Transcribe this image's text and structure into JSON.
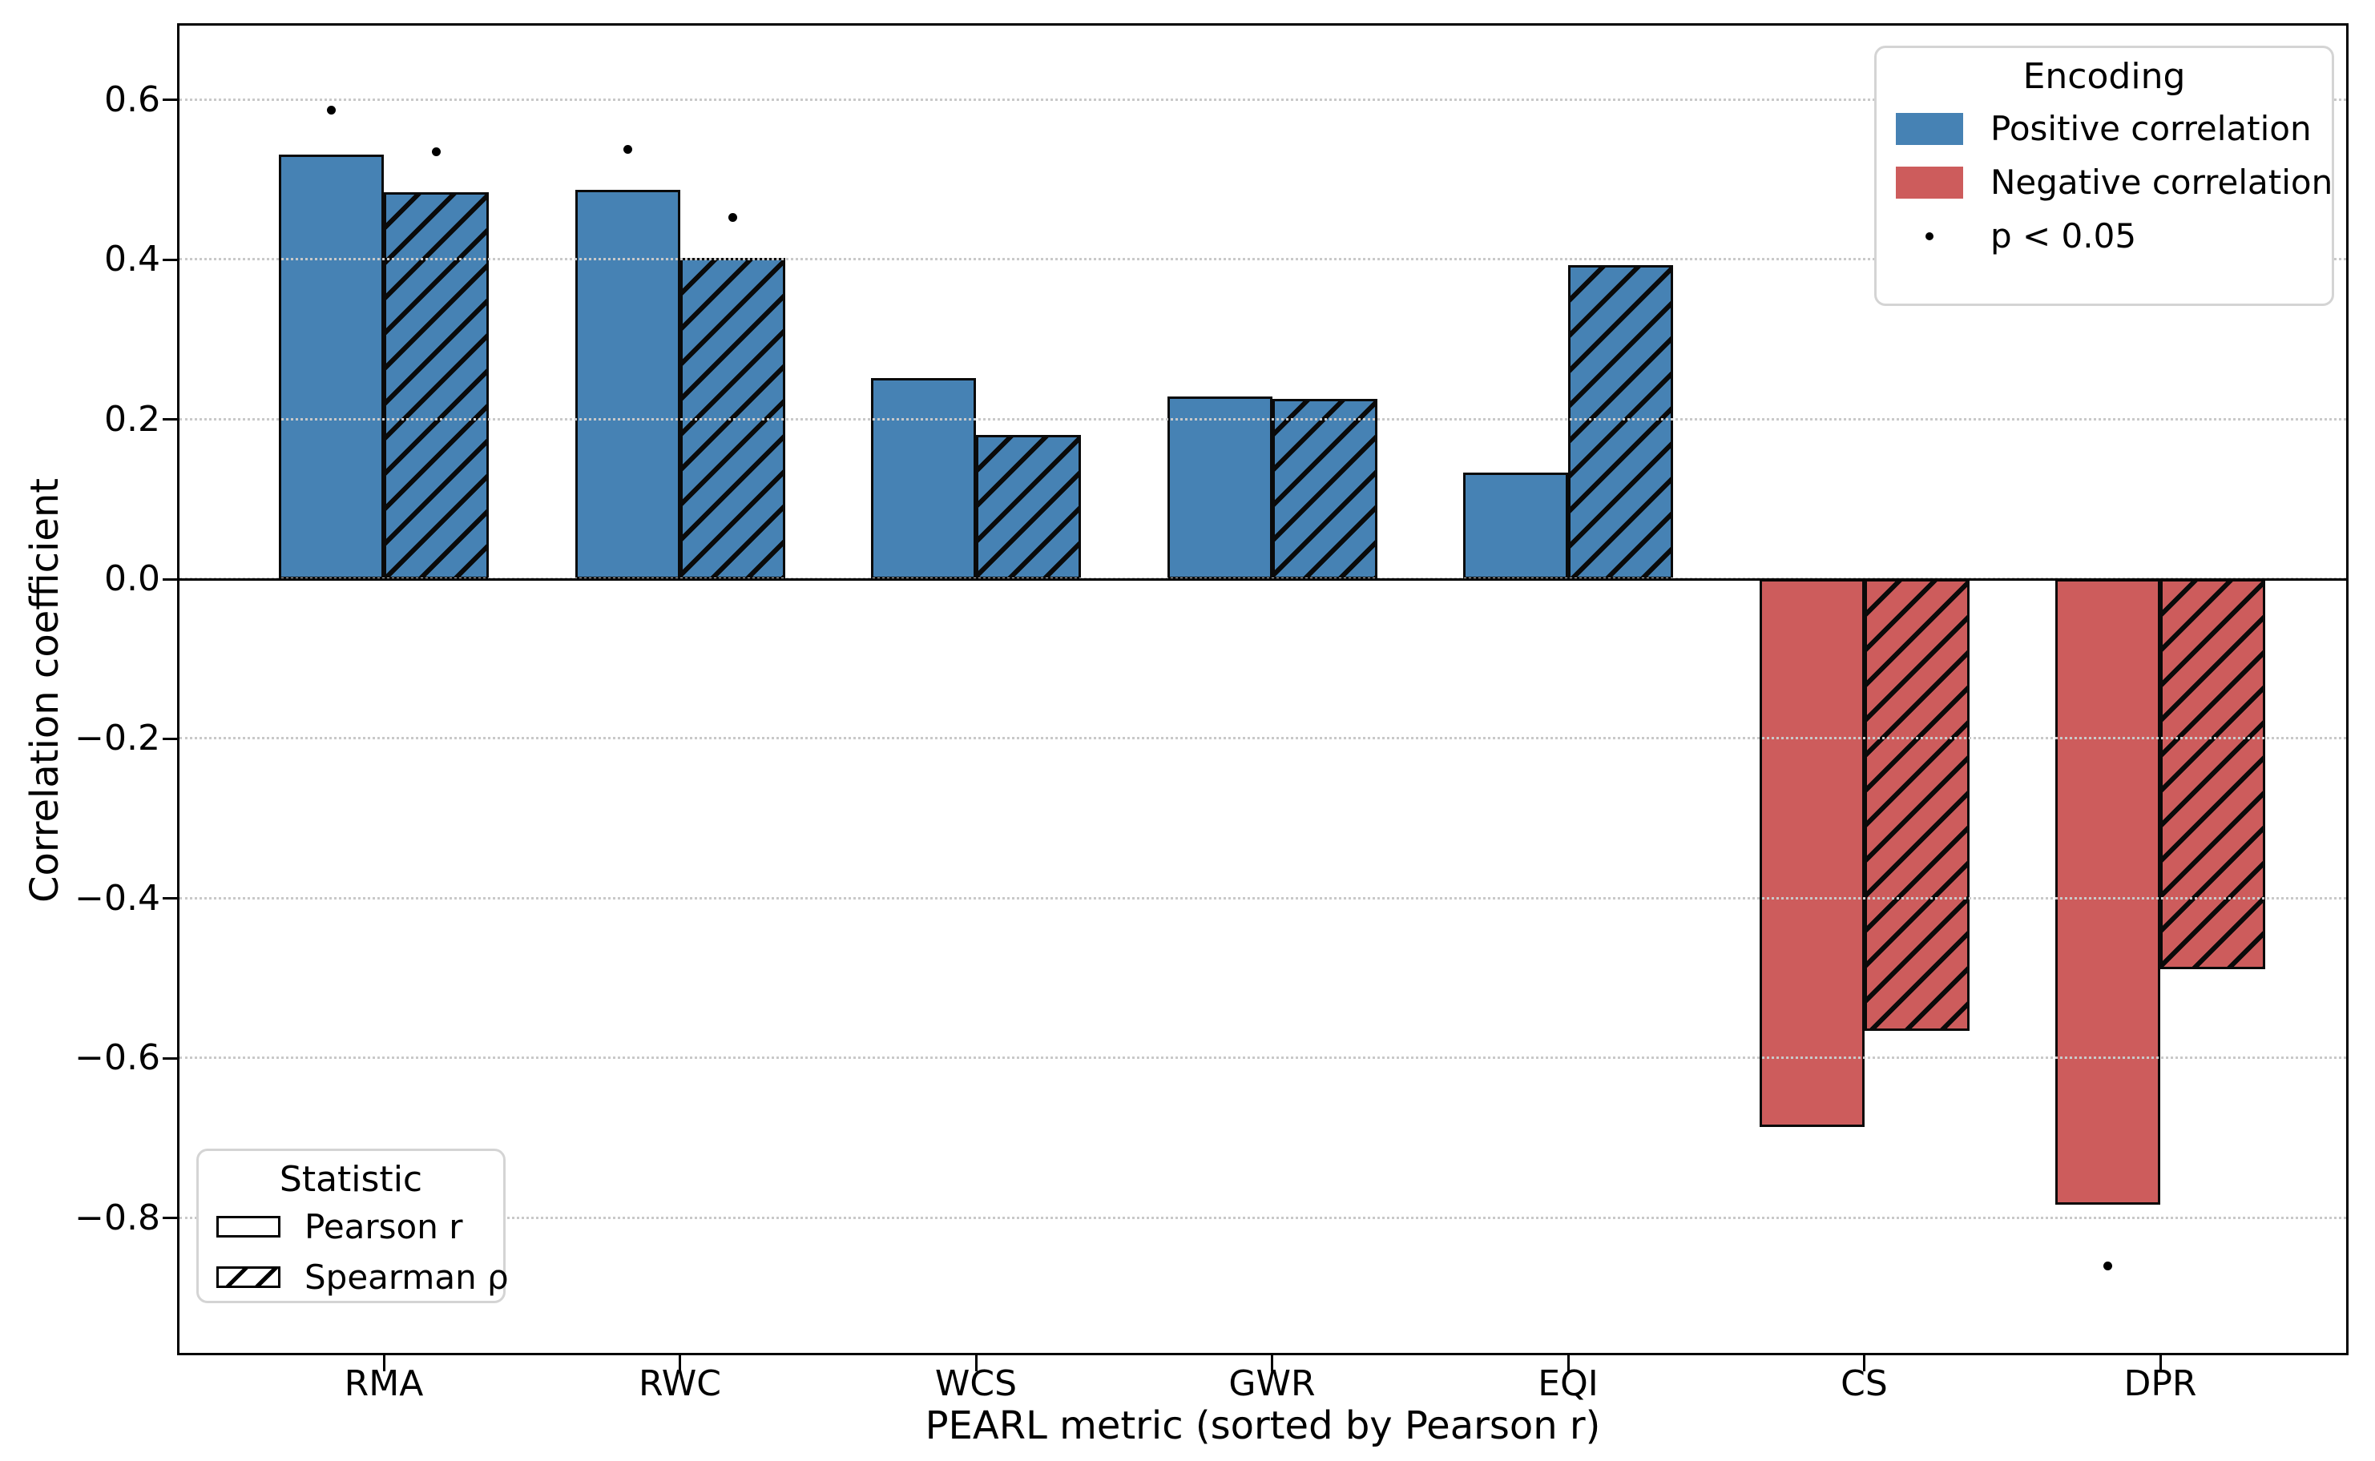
{
  "figure": {
    "background": "#ffffff"
  },
  "axes": {
    "ylabel": "Correlation coefficient",
    "xlabel": "PEARL metric (sorted by Pearson r)",
    "yticks": [
      0.6,
      0.4,
      0.2,
      0.0,
      -0.2,
      -0.4,
      -0.6,
      -0.8
    ],
    "ytick_labels": [
      "0.6",
      "0.4",
      "0.2",
      "0.0",
      "−0.2",
      "−0.4",
      "−0.6",
      "−0.8"
    ]
  },
  "chart_data": {
    "type": "bar",
    "title": "",
    "xlabel": "PEARL metric (sorted by Pearson r)",
    "ylabel": "Correlation coefficient",
    "categories": [
      "RMA",
      "RWC",
      "WCS",
      "GWR",
      "EQI",
      "CS",
      "DPR"
    ],
    "series": [
      {
        "name": "Pearson r",
        "hatch": false,
        "values": [
          0.532,
          0.487,
          0.252,
          0.229,
          0.133,
          -0.686,
          -0.783
        ]
      },
      {
        "name": "Spearman ρ",
        "hatch": true,
        "values": [
          0.484,
          0.402,
          0.181,
          0.226,
          0.393,
          -0.566,
          -0.488
        ]
      }
    ],
    "significance_markers": [
      {
        "category": "RMA",
        "series": "Pearson r",
        "value": 0.587
      },
      {
        "category": "RMA",
        "series": "Spearman ρ",
        "value": 0.535
      },
      {
        "category": "RWC",
        "series": "Pearson r",
        "value": 0.538
      },
      {
        "category": "RWC",
        "series": "Spearman ρ",
        "value": 0.453
      },
      {
        "category": "DPR",
        "series": "Pearson r",
        "value": -0.86
      }
    ],
    "ylim": [
      -0.969,
      0.693
    ],
    "grid": "horizontal-dotted",
    "legend_positions": {
      "encoding": "upper right",
      "statistic": "lower left"
    },
    "colors": {
      "positive": "#4682B4",
      "negative": "#CD5C5C",
      "bar_edge": "#0a0a0a",
      "gridline": "#c9c9c9",
      "significance_dot": "#000000"
    }
  },
  "legends": {
    "encoding": {
      "title": "Encoding",
      "items": [
        {
          "label": "Positive correlation",
          "swatch": "blue-fill"
        },
        {
          "label": "Negative correlation",
          "swatch": "red-fill"
        },
        {
          "label": "p < 0.05",
          "swatch": "dot"
        }
      ]
    },
    "statistic": {
      "title": "Statistic",
      "items": [
        {
          "label": "Pearson r",
          "swatch": "outline-rect"
        },
        {
          "label": "Spearman ρ",
          "swatch": "hatched-rect"
        }
      ]
    }
  }
}
